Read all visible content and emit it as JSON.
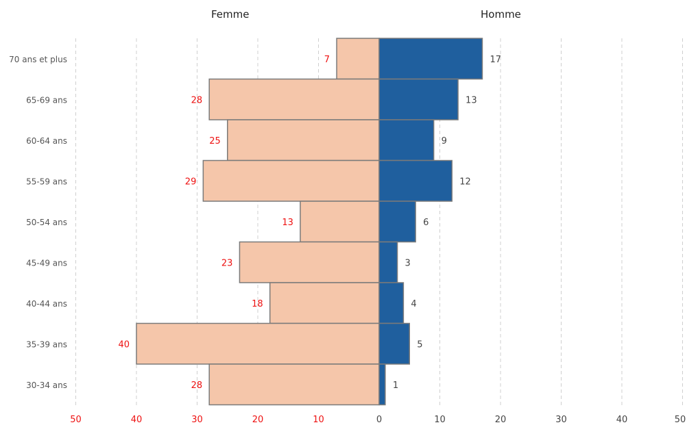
{
  "chart_data": {
    "type": "bar",
    "orientation": "horizontal",
    "categories": [
      "70 ans et plus",
      "65-69 ans",
      "60-64 ans",
      "55-59 ans",
      "50-54 ans",
      "45-49 ans",
      "40-44 ans",
      "35-39 ans",
      "30-34 ans"
    ],
    "series": [
      {
        "name": "Femme",
        "values": [
          7,
          28,
          25,
          29,
          13,
          23,
          18,
          40,
          28
        ],
        "color": "#f5c6aa",
        "label_color": "#ee1111"
      },
      {
        "name": "Homme",
        "values": [
          17,
          13,
          9,
          12,
          6,
          3,
          4,
          5,
          1
        ],
        "color": "#1f5f9e",
        "label_color": "#444444"
      }
    ],
    "x_ticks_left": [
      "50",
      "40",
      "30",
      "20",
      "10"
    ],
    "x_ticks_right": [
      "0",
      "10",
      "20",
      "30",
      "40",
      "50"
    ],
    "xlim": [
      -50,
      50
    ],
    "tick_color_left": "#ee1111",
    "tick_color_right": "#444444",
    "bar_edge_color": "#7a7a7a",
    "grid": true,
    "grid_style": "dashed-vertical"
  }
}
